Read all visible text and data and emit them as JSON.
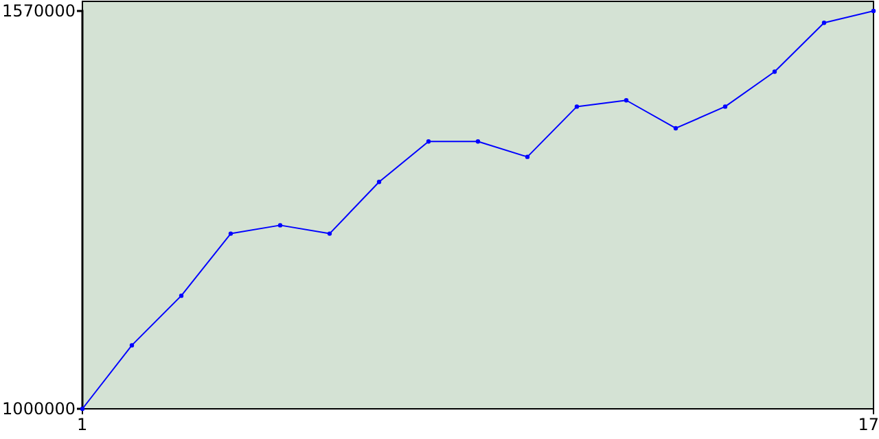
{
  "chart_data": {
    "type": "line",
    "x": [
      1,
      2,
      3,
      4,
      5,
      6,
      7,
      8,
      9,
      10,
      11,
      12,
      13,
      14,
      15,
      16,
      17
    ],
    "series": [
      {
        "color": "#0000ff",
        "values": [
          1000000,
          1091000,
          1162000,
          1251000,
          1263000,
          1251000,
          1325000,
          1383000,
          1383000,
          1361000,
          1433000,
          1442000,
          1402000,
          1433000,
          1483000,
          1553000,
          1570000
        ]
      }
    ],
    "xlim": [
      1,
      17
    ],
    "xticks": [
      1,
      17
    ],
    "ylim": [
      1000000,
      1570000
    ],
    "yticks": [
      1000000,
      1570000
    ],
    "marker": "circle",
    "grid": false
  }
}
